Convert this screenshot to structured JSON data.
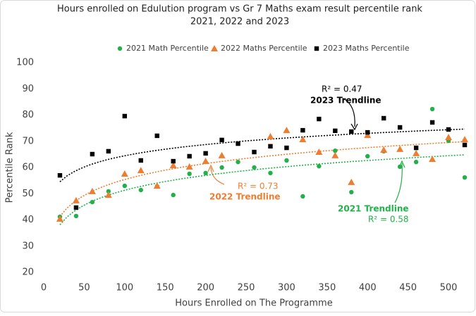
{
  "chart_data": {
    "type": "scatter",
    "title": "Hours enrolled on Edulution program vs Gr 7 Maths exam result percentile rank",
    "subtitle": "2021, 2022 and 2023",
    "x_label": "Hours Enrolled on The Programme",
    "y_label": "Percentile Rank",
    "xlim": [
      0,
      520
    ],
    "ylim": [
      20,
      100
    ],
    "xticks": [
      0,
      50,
      100,
      150,
      200,
      250,
      300,
      350,
      400,
      450,
      500
    ],
    "yticks": [
      20,
      30,
      40,
      50,
      60,
      70,
      80,
      90,
      100
    ],
    "grid": false,
    "legend": "top",
    "series": [
      {
        "name": "2021 Math Percentile",
        "color": "#22b04b",
        "marker": "circle",
        "x": [
          20,
          40,
          60,
          80,
          100,
          120,
          140,
          160,
          180,
          200,
          220,
          240,
          260,
          280,
          300,
          320,
          340,
          360,
          380,
          400,
          420,
          440,
          460,
          480,
          500,
          520
        ],
        "values": [
          41.2,
          41.5,
          46.8,
          50.9,
          53,
          51.4,
          52.8,
          49.5,
          57.6,
          57.9,
          60,
          62.1,
          60,
          57.9,
          62.7,
          49,
          60.5,
          66.4,
          50.6,
          64.3,
          66.2,
          60.3,
          62.1,
          82.3,
          70.2,
          56.2
        ]
      },
      {
        "name": "2022 Maths Percentile",
        "color": "#ed7d31",
        "marker": "triangle",
        "x": [
          20,
          40,
          60,
          80,
          100,
          120,
          140,
          160,
          180,
          200,
          220,
          280,
          300,
          320,
          340,
          360,
          380,
          400,
          420,
          440,
          460,
          480,
          500,
          520
        ],
        "values": [
          40.4,
          47.4,
          50.9,
          49.5,
          57.6,
          58.9,
          53,
          60.8,
          60.3,
          62.4,
          64.6,
          71.8,
          74.2,
          70.7,
          65.9,
          64.6,
          54.4,
          72.3,
          66.7,
          67,
          65.4,
          63.2,
          71.5,
          70.7
        ]
      },
      {
        "name": "2023 Maths Percentile",
        "color": "#000000",
        "marker": "square",
        "x": [
          20,
          40,
          60,
          80,
          100,
          120,
          140,
          160,
          180,
          200,
          220,
          240,
          260,
          280,
          300,
          320,
          340,
          360,
          380,
          400,
          420,
          440,
          460,
          480,
          500,
          520
        ],
        "values": [
          57,
          44.7,
          65.1,
          66.2,
          79.6,
          62.7,
          72.1,
          62.4,
          64.3,
          65.4,
          70.5,
          69.1,
          65.9,
          68.1,
          67.5,
          74.2,
          78.5,
          74,
          73.7,
          73.4,
          78.8,
          75.3,
          67.5,
          77.2,
          74.5,
          68.6
        ]
      }
    ],
    "annotations": [
      {
        "text": "R² = 0.47",
        "series": 2
      },
      {
        "text": "2023 Trendline",
        "series": 2
      },
      {
        "text": "R² = 0.73",
        "series": 1
      },
      {
        "text": "2022 Trendline",
        "series": 1
      },
      {
        "text": "2021 Trendline",
        "series": 0
      },
      {
        "text": "R² = 0.58",
        "series": 0
      }
    ]
  }
}
